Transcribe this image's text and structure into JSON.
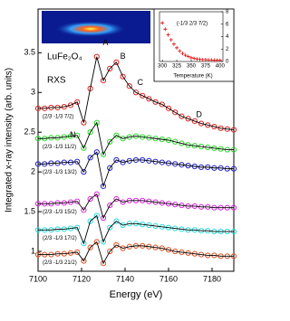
{
  "chart_data": [
    {
      "type": "line",
      "xlabel": "Energy (eV)",
      "ylabel": "Integrated x-ray intensity (arb. units)",
      "xlim": [
        7100,
        7190
      ],
      "xticks": [
        7100,
        7120,
        7140,
        7160,
        7180
      ],
      "ylim": [
        0.75,
        4.05
      ],
      "yticks": [
        1,
        1.5,
        2,
        2.5,
        3,
        3.5
      ],
      "annotations": [
        "LuFe₂O₄",
        "RXS",
        "A",
        "B",
        "C",
        "D",
        "N"
      ],
      "x": [
        7100,
        7103,
        7106,
        7109,
        7112,
        7115,
        7118,
        7121,
        7124,
        7127,
        7130,
        7133,
        7136,
        7139,
        7142,
        7145,
        7148,
        7151,
        7154,
        7157,
        7160,
        7163,
        7166,
        7169,
        7172,
        7175,
        7178,
        7181,
        7184,
        7187,
        7190
      ],
      "fit_color": "#000000",
      "series": [
        {
          "name": "(2/3 -1/3 7/2)",
          "color": "#e02020",
          "values": [
            2.8,
            2.8,
            2.81,
            2.81,
            2.82,
            2.84,
            2.88,
            2.62,
            3.05,
            3.45,
            3.15,
            3.3,
            3.38,
            3.2,
            3.08,
            3.0,
            2.96,
            2.92,
            2.88,
            2.85,
            2.8,
            2.75,
            2.7,
            2.67,
            2.64,
            2.61,
            2.59,
            2.57,
            2.55,
            2.54,
            2.53
          ]
        },
        {
          "name": "(2/3 -1/3 11/2)",
          "color": "#22dd22",
          "values": [
            2.42,
            2.42,
            2.43,
            2.43,
            2.44,
            2.45,
            2.46,
            2.3,
            2.5,
            2.62,
            2.22,
            2.38,
            2.46,
            2.42,
            2.44,
            2.45,
            2.44,
            2.43,
            2.42,
            2.41,
            2.4,
            2.38,
            2.36,
            2.34,
            2.33,
            2.32,
            2.31,
            2.3,
            2.29,
            2.28,
            2.28
          ]
        },
        {
          "name": "(2/3 -1/3 13/2)",
          "color": "#2020d0",
          "values": [
            2.1,
            2.1,
            2.11,
            2.11,
            2.12,
            2.12,
            2.13,
            2.0,
            2.18,
            2.25,
            1.82,
            2.05,
            2.15,
            2.12,
            2.14,
            2.15,
            2.15,
            2.14,
            2.13,
            2.12,
            2.11,
            2.1,
            2.09,
            2.08,
            2.07,
            2.06,
            2.06,
            2.05,
            2.05,
            2.04,
            2.04
          ]
        },
        {
          "name": "(2/3 -1/3 15/2)",
          "color": "#e020e0",
          "values": [
            1.6,
            1.6,
            1.6,
            1.61,
            1.61,
            1.62,
            1.63,
            1.52,
            1.66,
            1.72,
            1.42,
            1.58,
            1.66,
            1.62,
            1.64,
            1.64,
            1.64,
            1.63,
            1.62,
            1.61,
            1.6,
            1.59,
            1.58,
            1.57,
            1.57,
            1.56,
            1.56,
            1.55,
            1.55,
            1.55,
            1.55
          ]
        },
        {
          "name": "(2/3 -1/3 17/2)",
          "color": "#20e0e0",
          "values": [
            1.27,
            1.27,
            1.27,
            1.28,
            1.28,
            1.29,
            1.3,
            1.1,
            1.38,
            1.45,
            1.12,
            1.3,
            1.38,
            1.33,
            1.35,
            1.35,
            1.34,
            1.33,
            1.32,
            1.31,
            1.3,
            1.29,
            1.28,
            1.27,
            1.27,
            1.26,
            1.26,
            1.25,
            1.25,
            1.25,
            1.25
          ]
        },
        {
          "name": "(2/3 -1/3 21/2)",
          "color": "#e05020",
          "values": [
            0.96,
            0.96,
            0.96,
            0.97,
            0.97,
            0.98,
            0.99,
            0.88,
            1.05,
            1.12,
            0.85,
            1.0,
            1.08,
            1.04,
            1.06,
            1.07,
            1.07,
            1.06,
            1.05,
            1.04,
            1.02,
            1.0,
            0.99,
            0.98,
            0.97,
            0.96,
            0.95,
            0.95,
            0.94,
            0.94,
            0.94
          ]
        }
      ]
    },
    {
      "type": "scatter",
      "xlabel": "Temperature (K)",
      "annotation": "(-1/3 2/3 7/2)",
      "xlim": [
        295,
        405
      ],
      "xticks": [
        300,
        325,
        350,
        375,
        400
      ],
      "ylim": [
        0,
        8
      ],
      "yticks": [
        0,
        2,
        4,
        6,
        8
      ],
      "color": "#e02020",
      "x": [
        300,
        305,
        310,
        315,
        320,
        325,
        330,
        335,
        340,
        345,
        350,
        355,
        360,
        365,
        370,
        375,
        380,
        385,
        390,
        395,
        400
      ],
      "values": [
        6.2,
        5.2,
        4.3,
        3.5,
        2.8,
        2.2,
        1.7,
        1.3,
        1.0,
        0.8,
        0.6,
        0.5,
        0.4,
        0.35,
        0.3,
        0.3,
        0.25,
        0.25,
        0.2,
        0.2,
        0.2
      ]
    }
  ]
}
